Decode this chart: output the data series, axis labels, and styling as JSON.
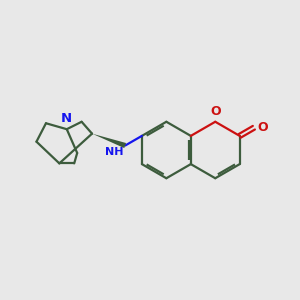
{
  "bg_color": "#e8e8e8",
  "bond_color": "#3d5c3d",
  "n_color": "#1515ee",
  "o_color": "#cc1111",
  "lw": 1.6,
  "figsize": [
    3.0,
    3.0
  ],
  "dpi": 100,
  "xlim": [
    0.0,
    1.0
  ],
  "ylim": [
    0.1,
    0.9
  ]
}
